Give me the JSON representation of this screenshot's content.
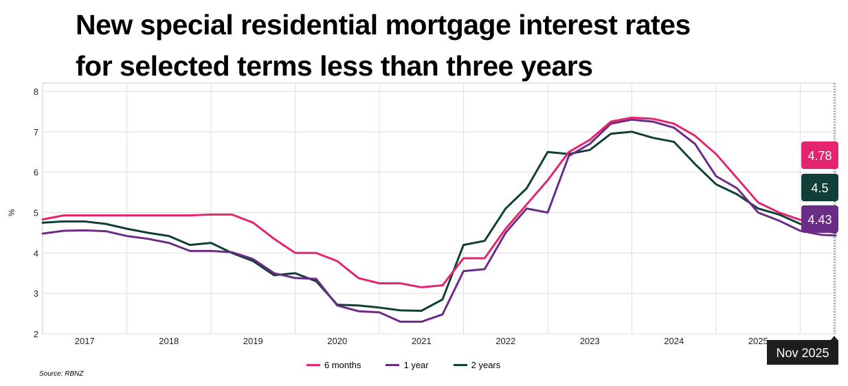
{
  "title": {
    "line1": "New special residential mortgage interest rates",
    "line2": "for selected terms less than three years"
  },
  "source": "Source: RBNZ",
  "tooltip_label": "Nov 2025",
  "colors": {
    "6 months": "#e5246e",
    "1 year": "#6b2c86",
    "2 years": "#0f3f36"
  },
  "chart_data": {
    "type": "line",
    "title": "New special residential mortgage interest rates for selected terms less than three years",
    "xlabel": "",
    "ylabel": "%",
    "ylim": [
      2,
      8
    ],
    "xlim": [
      2016.5,
      2025.92
    ],
    "yticks": [
      2,
      3,
      4,
      5,
      6,
      7,
      8
    ],
    "xticks": [
      "2017",
      "2018",
      "2019",
      "2020",
      "2021",
      "2022",
      "2023",
      "2024",
      "2025"
    ],
    "grid": true,
    "legend": "bottom-center",
    "x": [
      2016.5,
      2016.75,
      2017.0,
      2017.25,
      2017.5,
      2017.75,
      2018.0,
      2018.25,
      2018.5,
      2018.75,
      2019.0,
      2019.25,
      2019.5,
      2019.75,
      2020.0,
      2020.25,
      2020.5,
      2020.75,
      2021.0,
      2021.25,
      2021.5,
      2021.75,
      2022.0,
      2022.25,
      2022.5,
      2022.75,
      2023.0,
      2023.25,
      2023.5,
      2023.75,
      2024.0,
      2024.25,
      2024.5,
      2024.75,
      2025.0,
      2025.25,
      2025.5,
      2025.75,
      2025.92
    ],
    "series": [
      {
        "name": "6 months",
        "end_label": "4.78",
        "values": [
          4.83,
          4.93,
          4.93,
          4.93,
          4.93,
          4.93,
          4.93,
          4.93,
          4.95,
          4.95,
          4.75,
          4.35,
          4.0,
          4.0,
          3.8,
          3.38,
          3.25,
          3.25,
          3.15,
          3.2,
          3.87,
          3.87,
          4.6,
          5.2,
          5.8,
          6.5,
          6.8,
          7.25,
          7.35,
          7.32,
          7.2,
          6.9,
          6.45,
          5.85,
          5.25,
          5.0,
          4.82,
          4.8,
          4.78
        ]
      },
      {
        "name": "1 year",
        "end_label": "4.43",
        "values": [
          4.48,
          4.55,
          4.56,
          4.54,
          4.42,
          4.35,
          4.25,
          4.05,
          4.05,
          4.02,
          3.85,
          3.5,
          3.38,
          3.36,
          2.7,
          2.56,
          2.53,
          2.3,
          2.3,
          2.48,
          3.55,
          3.6,
          4.5,
          5.1,
          5.0,
          6.4,
          6.7,
          7.2,
          7.3,
          7.25,
          7.1,
          6.7,
          5.9,
          5.6,
          5.0,
          4.8,
          4.55,
          4.45,
          4.43
        ]
      },
      {
        "name": "2 years",
        "end_label": "4.5",
        "values": [
          4.75,
          4.78,
          4.78,
          4.72,
          4.6,
          4.5,
          4.42,
          4.2,
          4.25,
          4.0,
          3.8,
          3.45,
          3.5,
          3.3,
          2.72,
          2.7,
          2.65,
          2.58,
          2.57,
          2.85,
          4.2,
          4.3,
          5.1,
          5.6,
          6.5,
          6.45,
          6.55,
          6.95,
          7.0,
          6.85,
          6.75,
          6.2,
          5.7,
          5.45,
          5.1,
          4.95,
          4.72,
          4.55,
          4.5
        ]
      }
    ]
  },
  "legend_items": [
    "6 months",
    "1 year",
    "2 years"
  ]
}
